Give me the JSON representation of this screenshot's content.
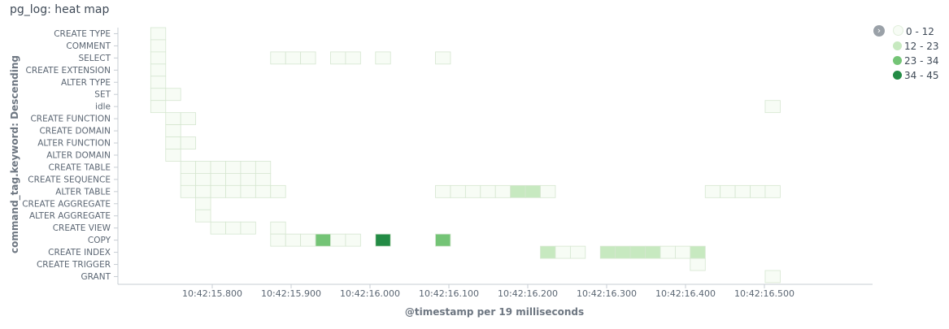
{
  "title": "pg_log: heat map",
  "legend_toggle_icon": "chevron-right-icon",
  "legend": [
    {
      "label": "0 - 12",
      "color": "#f7fcf5"
    },
    {
      "label": "12 - 23",
      "color": "#c7e9c0"
    },
    {
      "label": "23 - 34",
      "color": "#74c476"
    },
    {
      "label": "34 - 45",
      "color": "#238b45"
    }
  ],
  "chart_data": {
    "type": "heatmap",
    "title": "pg_log: heat map",
    "xlabel": "@timestamp per 19 milliseconds",
    "ylabel": "command_tag.keyword: Descending",
    "x_ticks": [
      "10:42:15.800",
      "10:42:15.900",
      "10:42:16.000",
      "10:42:16.100",
      "10:42:16.200",
      "10:42:16.300",
      "10:42:16.400",
      "10:42:16.500"
    ],
    "y_categories": [
      "CREATE TYPE",
      "COMMENT",
      "SELECT",
      "CREATE EXTENSION",
      "ALTER TYPE",
      "SET",
      "idle",
      "CREATE FUNCTION",
      "CREATE DOMAIN",
      "ALTER FUNCTION",
      "ALTER DOMAIN",
      "CREATE TABLE",
      "CREATE SEQUENCE",
      "ALTER TABLE",
      "CREATE AGGREGATE",
      "ALTER AGGREGATE",
      "CREATE VIEW",
      "COPY",
      "CREATE INDEX",
      "CREATE TRIGGER",
      "GRANT"
    ],
    "legend_position": "top-right",
    "grid": false,
    "cells": [
      [
        "10:42:15.722",
        "CREATE TYPE",
        3
      ],
      [
        "10:42:15.722",
        "COMMENT",
        3
      ],
      [
        "10:42:15.722",
        "SELECT",
        3
      ],
      [
        "10:42:15.722",
        "CREATE EXTENSION",
        3
      ],
      [
        "10:42:15.722",
        "ALTER TYPE",
        3
      ],
      [
        "10:42:15.722",
        "SET",
        3
      ],
      [
        "10:42:15.722",
        "idle",
        3
      ],
      [
        "10:42:15.741",
        "SET",
        3
      ],
      [
        "10:42:15.741",
        "CREATE FUNCTION",
        3
      ],
      [
        "10:42:15.760",
        "CREATE FUNCTION",
        3
      ],
      [
        "10:42:15.741",
        "CREATE DOMAIN",
        3
      ],
      [
        "10:42:15.741",
        "ALTER FUNCTION",
        3
      ],
      [
        "10:42:15.760",
        "ALTER FUNCTION",
        3
      ],
      [
        "10:42:15.741",
        "ALTER DOMAIN",
        3
      ],
      [
        "10:42:15.760",
        "CREATE TABLE",
        3
      ],
      [
        "10:42:15.779",
        "CREATE TABLE",
        3
      ],
      [
        "10:42:15.798",
        "CREATE TABLE",
        3
      ],
      [
        "10:42:15.817",
        "CREATE TABLE",
        3
      ],
      [
        "10:42:15.836",
        "CREATE TABLE",
        3
      ],
      [
        "10:42:15.855",
        "CREATE TABLE",
        3
      ],
      [
        "10:42:15.760",
        "CREATE SEQUENCE",
        3
      ],
      [
        "10:42:15.779",
        "CREATE SEQUENCE",
        3
      ],
      [
        "10:42:15.798",
        "CREATE SEQUENCE",
        3
      ],
      [
        "10:42:15.817",
        "CREATE SEQUENCE",
        3
      ],
      [
        "10:42:15.836",
        "CREATE SEQUENCE",
        3
      ],
      [
        "10:42:15.855",
        "CREATE SEQUENCE",
        3
      ],
      [
        "10:42:15.760",
        "ALTER TABLE",
        3
      ],
      [
        "10:42:15.779",
        "ALTER TABLE",
        3
      ],
      [
        "10:42:15.798",
        "ALTER TABLE",
        3
      ],
      [
        "10:42:15.817",
        "ALTER TABLE",
        3
      ],
      [
        "10:42:15.836",
        "ALTER TABLE",
        3
      ],
      [
        "10:42:15.855",
        "ALTER TABLE",
        3
      ],
      [
        "10:42:15.874",
        "ALTER TABLE",
        3
      ],
      [
        "10:42:15.779",
        "CREATE AGGREGATE",
        3
      ],
      [
        "10:42:15.779",
        "ALTER AGGREGATE",
        3
      ],
      [
        "10:42:15.798",
        "CREATE VIEW",
        3
      ],
      [
        "10:42:15.817",
        "CREATE VIEW",
        3
      ],
      [
        "10:42:15.836",
        "CREATE VIEW",
        3
      ],
      [
        "10:42:15.874",
        "CREATE VIEW",
        3
      ],
      [
        "10:42:15.874",
        "SELECT",
        3
      ],
      [
        "10:42:15.893",
        "SELECT",
        3
      ],
      [
        "10:42:15.912",
        "SELECT",
        3
      ],
      [
        "10:42:15.950",
        "SELECT",
        3
      ],
      [
        "10:42:15.969",
        "SELECT",
        3
      ],
      [
        "10:42:16.007",
        "SELECT",
        3
      ],
      [
        "10:42:16.083",
        "SELECT",
        3
      ],
      [
        "10:42:15.874",
        "COPY",
        3
      ],
      [
        "10:42:15.893",
        "COPY",
        3
      ],
      [
        "10:42:15.912",
        "COPY",
        3
      ],
      [
        "10:42:15.931",
        "COPY",
        28
      ],
      [
        "10:42:15.950",
        "COPY",
        3
      ],
      [
        "10:42:15.969",
        "COPY",
        3
      ],
      [
        "10:42:16.007",
        "COPY",
        42
      ],
      [
        "10:42:16.083",
        "COPY",
        28
      ],
      [
        "10:42:16.083",
        "ALTER TABLE",
        3
      ],
      [
        "10:42:16.102",
        "ALTER TABLE",
        3
      ],
      [
        "10:42:16.121",
        "ALTER TABLE",
        3
      ],
      [
        "10:42:16.140",
        "ALTER TABLE",
        3
      ],
      [
        "10:42:16.159",
        "ALTER TABLE",
        3
      ],
      [
        "10:42:16.178",
        "ALTER TABLE",
        16
      ],
      [
        "10:42:16.197",
        "ALTER TABLE",
        16
      ],
      [
        "10:42:16.216",
        "ALTER TABLE",
        3
      ],
      [
        "10:42:16.216",
        "CREATE INDEX",
        16
      ],
      [
        "10:42:16.235",
        "CREATE INDEX",
        3
      ],
      [
        "10:42:16.254",
        "CREATE INDEX",
        3
      ],
      [
        "10:42:16.292",
        "CREATE INDEX",
        16
      ],
      [
        "10:42:16.311",
        "CREATE INDEX",
        16
      ],
      [
        "10:42:16.330",
        "CREATE INDEX",
        16
      ],
      [
        "10:42:16.349",
        "CREATE INDEX",
        16
      ],
      [
        "10:42:16.368",
        "CREATE INDEX",
        3
      ],
      [
        "10:42:16.387",
        "CREATE INDEX",
        3
      ],
      [
        "10:42:16.406",
        "CREATE INDEX",
        16
      ],
      [
        "10:42:16.406",
        "CREATE TRIGGER",
        3
      ],
      [
        "10:42:16.425",
        "ALTER TABLE",
        3
      ],
      [
        "10:42:16.444",
        "ALTER TABLE",
        3
      ],
      [
        "10:42:16.463",
        "ALTER TABLE",
        3
      ],
      [
        "10:42:16.482",
        "ALTER TABLE",
        3
      ],
      [
        "10:42:16.501",
        "ALTER TABLE",
        3
      ],
      [
        "10:42:16.501",
        "idle",
        3
      ],
      [
        "10:42:16.501",
        "GRANT",
        3
      ]
    ]
  }
}
